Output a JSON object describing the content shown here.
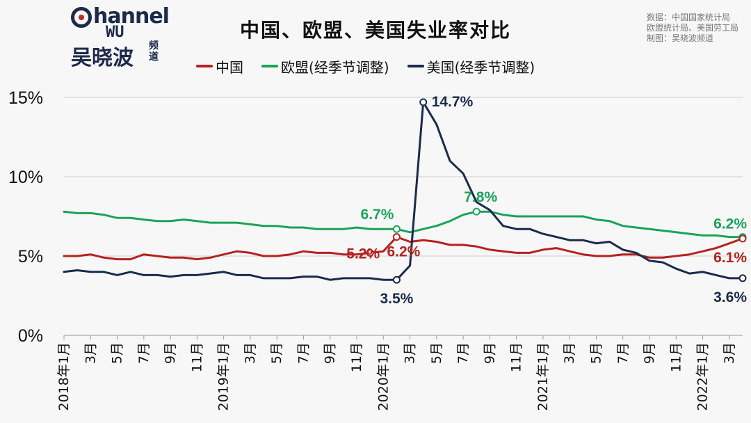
{
  "logo": {
    "line1": "hannel",
    "line2": "WU",
    "cn": "吴晓波",
    "cn_small": "频道"
  },
  "title": "中国、欧盟、美国失业率对比",
  "source_lines": [
    "数据：中国国家统计局",
    "欧盟统计局、美国劳工局",
    "制图：吴晓波频道"
  ],
  "colors": {
    "china": "#b5221f",
    "eu": "#1aa35a",
    "us": "#1b2a4d",
    "grid": "#cfcfcf"
  },
  "legend": [
    "中国",
    "欧盟(经季节调整)",
    "美国(经季节调整)"
  ],
  "chart_data": {
    "type": "line",
    "title": "中国、欧盟、美国失业率对比",
    "xlabel": "",
    "ylabel": "",
    "ylim": [
      0,
      15
    ],
    "yticks": [
      "0%",
      "5%",
      "10%",
      "15%"
    ],
    "grid": true,
    "legend_position": "top",
    "x_tick_labels": [
      "2018年1月",
      "3月",
      "5月",
      "7月",
      "9月",
      "11月",
      "2019年1月",
      "3月",
      "5月",
      "7月",
      "9月",
      "11月",
      "2020年1月",
      "3月",
      "5月",
      "7月",
      "9月",
      "11月",
      "2021年1月",
      "3月",
      "5月",
      "7月",
      "9月",
      "11月",
      "2022年1月",
      "3月"
    ],
    "x_start": "2018-01",
    "series": [
      {
        "name": "中国",
        "color": "#b5221f",
        "values": [
          5.0,
          5.0,
          5.1,
          4.9,
          4.8,
          4.8,
          5.1,
          5.0,
          4.9,
          4.9,
          4.8,
          4.9,
          5.1,
          5.3,
          5.2,
          5.0,
          5.0,
          5.1,
          5.3,
          5.2,
          5.2,
          5.1,
          5.1,
          5.2,
          5.3,
          6.2,
          5.9,
          6.0,
          5.9,
          5.7,
          5.7,
          5.6,
          5.4,
          5.3,
          5.2,
          5.2,
          5.4,
          5.5,
          5.3,
          5.1,
          5.0,
          5.0,
          5.1,
          5.1,
          4.9,
          4.9,
          5.0,
          5.1,
          5.3,
          5.5,
          5.8,
          6.1
        ]
      },
      {
        "name": "欧盟(经季节调整)",
        "color": "#1aa35a",
        "values": [
          7.8,
          7.7,
          7.7,
          7.6,
          7.4,
          7.4,
          7.3,
          7.2,
          7.2,
          7.3,
          7.2,
          7.1,
          7.1,
          7.1,
          7.0,
          6.9,
          6.9,
          6.8,
          6.8,
          6.7,
          6.7,
          6.7,
          6.8,
          6.7,
          6.7,
          6.7,
          6.5,
          6.7,
          6.9,
          7.2,
          7.6,
          7.8,
          7.8,
          7.6,
          7.5,
          7.5,
          7.5,
          7.5,
          7.5,
          7.5,
          7.3,
          7.2,
          6.9,
          6.8,
          6.7,
          6.6,
          6.5,
          6.4,
          6.3,
          6.3,
          6.2,
          6.2
        ]
      },
      {
        "name": "美国(经季节调整)",
        "color": "#1b2a4d",
        "values": [
          4.0,
          4.1,
          4.0,
          4.0,
          3.8,
          4.0,
          3.8,
          3.8,
          3.7,
          3.8,
          3.8,
          3.9,
          4.0,
          3.8,
          3.8,
          3.6,
          3.6,
          3.6,
          3.7,
          3.7,
          3.5,
          3.6,
          3.6,
          3.6,
          3.5,
          3.5,
          4.4,
          14.7,
          13.3,
          11.0,
          10.2,
          8.4,
          7.9,
          6.9,
          6.7,
          6.7,
          6.4,
          6.2,
          6.0,
          6.0,
          5.8,
          5.9,
          5.4,
          5.2,
          4.7,
          4.6,
          4.2,
          3.9,
          4.0,
          3.8,
          3.6,
          3.6
        ]
      }
    ],
    "annotations": [
      {
        "text": "14.7%",
        "series": 2,
        "index": 27,
        "value": 14.7
      },
      {
        "text": "7.8%",
        "series": 1,
        "index": 31,
        "value": 7.8
      },
      {
        "text": "6.7%",
        "series": 1,
        "index": 25,
        "value": 6.7
      },
      {
        "text": "5.2%",
        "series": 0,
        "index": 23,
        "value": 5.2
      },
      {
        "text": "6.2%",
        "series": 0,
        "index": 25,
        "value": 6.2
      },
      {
        "text": "3.5%",
        "series": 2,
        "index": 25,
        "value": 3.5
      },
      {
        "text": "6.2%",
        "series": 1,
        "index": 51,
        "value": 6.2
      },
      {
        "text": "6.1%",
        "series": 0,
        "index": 51,
        "value": 6.1
      },
      {
        "text": "3.6%",
        "series": 2,
        "index": 51,
        "value": 3.6
      }
    ]
  }
}
